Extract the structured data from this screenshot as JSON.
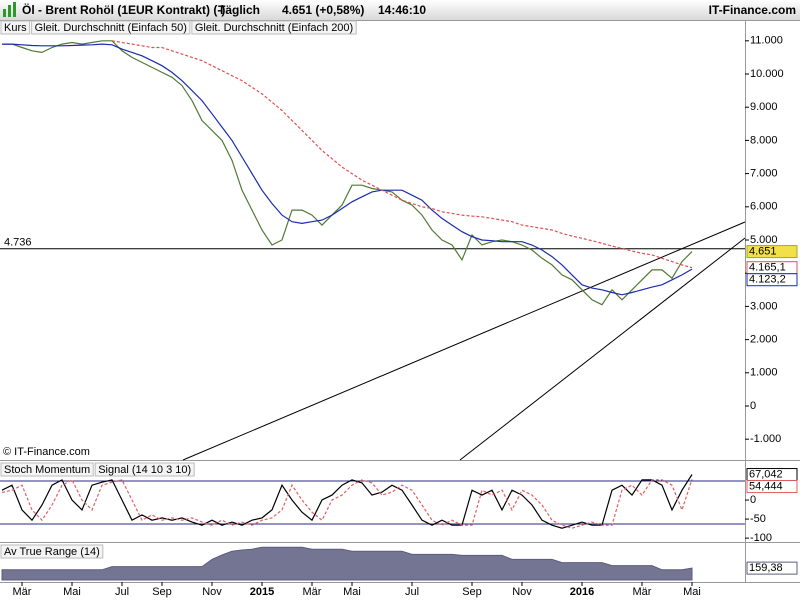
{
  "header": {
    "title": "Öl - Brent Rohöl (1EUR Kontrakt) (-)",
    "period": "Täglich",
    "price": "4.651 (+0,58%)",
    "time": "14:46:10",
    "brand": "IT-Finance.com"
  },
  "copyright": "© IT-Finance.com",
  "chart_data": [
    {
      "type": "line",
      "categories": [
        null,
        null,
        "Mär",
        null,
        null,
        null,
        null,
        "Mai",
        null,
        null,
        null,
        null,
        "Jul",
        null,
        null,
        null,
        "Sep",
        null,
        null,
        null,
        null,
        "Nov",
        null,
        null,
        null,
        null,
        "2015",
        null,
        null,
        null,
        null,
        "Mär",
        null,
        null,
        null,
        "Mai",
        null,
        null,
        null,
        null,
        null,
        "Jul",
        null,
        null,
        null,
        null,
        null,
        "Sep",
        null,
        null,
        null,
        null,
        "Nov",
        null,
        null,
        null,
        null,
        null,
        "2016",
        null,
        null,
        null,
        null,
        null,
        "Mär",
        null,
        null,
        null,
        null,
        "Mai"
      ],
      "series": [
        {
          "name": "Kurs",
          "color": "#4f7a34",
          "last_label": "4.651",
          "values": [
            10900,
            10900,
            10800,
            10700,
            10650,
            10800,
            10900,
            10950,
            10900,
            10950,
            11000,
            11000,
            10700,
            10500,
            10350,
            10200,
            10050,
            9900,
            9650,
            9200,
            8600,
            8300,
            8000,
            7400,
            6500,
            5900,
            5300,
            4850,
            5000,
            5900,
            5900,
            5750,
            5450,
            5750,
            6050,
            6650,
            6650,
            6550,
            6500,
            6450,
            6200,
            6050,
            5750,
            5300,
            5000,
            4850,
            4400,
            5150,
            4850,
            4950,
            5000,
            4950,
            4850,
            4700,
            4450,
            4250,
            3950,
            3800,
            3500,
            3200,
            3050,
            3500,
            3200,
            3500,
            3800,
            4100,
            4100,
            3850,
            4350,
            4651
          ]
        },
        {
          "name": "Gleit. Durchschnitt (Einfach 50)",
          "color": "#1a2bb0",
          "last_label": "4.123,2",
          "values": [
            10900,
            10900,
            10880,
            10860,
            10850,
            10850,
            10850,
            10860,
            10870,
            10880,
            10900,
            10880,
            10750,
            10650,
            10550,
            10400,
            10250,
            10050,
            9800,
            9500,
            9200,
            8800,
            8400,
            8000,
            7500,
            7000,
            6500,
            6100,
            5750,
            5550,
            5500,
            5550,
            5600,
            5750,
            5950,
            6150,
            6300,
            6450,
            6500,
            6500,
            6500,
            6350,
            6200,
            5900,
            5650,
            5450,
            5250,
            5100,
            5000,
            4980,
            4950,
            4950,
            4950,
            4850,
            4700,
            4500,
            4250,
            3950,
            3650,
            3550,
            3500,
            3420,
            3350,
            3420,
            3500,
            3580,
            3650,
            3800,
            3950,
            4123
          ]
        },
        {
          "name": "Gleit. Durchschnitt (Einfach 200)",
          "color": "#e05050",
          "dashed": true,
          "last_label": "4.165,1",
          "values": [
            null,
            null,
            null,
            null,
            null,
            null,
            null,
            null,
            null,
            null,
            null,
            11000,
            10950,
            10900,
            10850,
            10800,
            10800,
            10700,
            10600,
            10500,
            10400,
            10250,
            10100,
            9950,
            9800,
            9600,
            9400,
            9150,
            8900,
            8600,
            8300,
            8000,
            7700,
            7450,
            7200,
            7000,
            6800,
            6650,
            6500,
            6350,
            6200,
            6100,
            6000,
            5950,
            5850,
            5800,
            5750,
            5720,
            5700,
            5650,
            5600,
            5550,
            5450,
            5400,
            5350,
            5300,
            5200,
            5120,
            5050,
            4980,
            4900,
            4820,
            4740,
            4670,
            4600,
            4550,
            4450,
            4350,
            4250,
            4165
          ]
        }
      ],
      "ylim": [
        -1627,
        11627
      ],
      "yticks": [
        {
          "value": 11000,
          "label": "11.000"
        },
        {
          "value": 10000,
          "label": "10.000"
        },
        {
          "value": 9000,
          "label": "9.000"
        },
        {
          "value": 8000,
          "label": "8.000"
        },
        {
          "value": 7000,
          "label": "7.000"
        },
        {
          "value": 6000,
          "label": "6.000"
        },
        {
          "value": 5000,
          "label": "5.000"
        },
        {
          "value": 4000,
          "label": "4.000"
        },
        {
          "value": 3000,
          "label": "3.000"
        },
        {
          "value": 2000,
          "label": "2.000"
        },
        {
          "value": 1000,
          "label": "1.000"
        },
        0,
        {
          "value": -1000,
          "label": "-1.000"
        }
      ],
      "hline": {
        "value": 4736,
        "label": "4.736"
      }
    },
    {
      "type": "line",
      "series": [
        {
          "name": "Stoch Momentum",
          "color": "#000000",
          "last_label": "67,042",
          "values": [
            26,
            39,
            -26,
            -53,
            -13,
            39,
            53,
            0,
            -26,
            39,
            47,
            53,
            0,
            -53,
            -39,
            -53,
            -47,
            -53,
            -47,
            -58,
            -66,
            -53,
            -66,
            -58,
            -66,
            -53,
            -47,
            -26,
            39,
            0,
            -32,
            -53,
            0,
            13,
            39,
            53,
            45,
            13,
            21,
            39,
            26,
            -13,
            -53,
            -66,
            -53,
            -66,
            -66,
            26,
            13,
            26,
            -26,
            26,
            13,
            -13,
            -53,
            -66,
            -74,
            -66,
            -58,
            -66,
            -66,
            26,
            39,
            13,
            53,
            53,
            39,
            -26,
            26,
            67.042
          ]
        },
        {
          "name": "Signal (14 10 3 10)",
          "color": "#e06060",
          "dashed": true,
          "last_label": "54,444",
          "values": [
            20,
            26,
            39,
            -26,
            -53,
            -13,
            39,
            53,
            0,
            -26,
            39,
            47,
            53,
            0,
            -53,
            -39,
            -53,
            -47,
            -53,
            -47,
            -58,
            -66,
            -53,
            -66,
            -58,
            -66,
            -53,
            -47,
            -26,
            39,
            0,
            -32,
            -53,
            0,
            13,
            39,
            53,
            45,
            13,
            21,
            39,
            26,
            -13,
            -53,
            -66,
            -53,
            -66,
            -66,
            26,
            13,
            26,
            -26,
            26,
            13,
            -13,
            -53,
            -66,
            -74,
            -66,
            -58,
            -66,
            -66,
            26,
            39,
            13,
            53,
            53,
            39,
            -26,
            54.444
          ]
        }
      ],
      "ylim": [
        -105,
        100
      ],
      "yticks": [
        0,
        -50,
        -100
      ],
      "levels": [
        50,
        -63
      ]
    },
    {
      "type": "area",
      "series": [
        {
          "name": "Av True Range (14)",
          "color": "#5c5c80",
          "last_label": "159,38",
          "values": [
            151,
            151,
            151,
            151,
            151,
            151,
            151,
            151,
            151,
            151,
            151,
            167,
            167,
            167,
            167,
            167,
            167,
            167,
            167,
            167,
            167,
            203,
            225,
            244,
            250,
            254,
            264,
            264,
            264,
            264,
            264,
            254,
            254,
            254,
            254,
            244,
            244,
            244,
            244,
            244,
            244,
            228,
            228,
            228,
            228,
            228,
            223,
            223,
            223,
            223,
            223,
            203,
            203,
            203,
            203,
            203,
            187,
            187,
            187,
            187,
            187,
            172,
            172,
            172,
            172,
            172,
            151,
            151,
            151,
            159.38
          ]
        }
      ],
      "ylim": [
        100,
        280
      ]
    }
  ]
}
